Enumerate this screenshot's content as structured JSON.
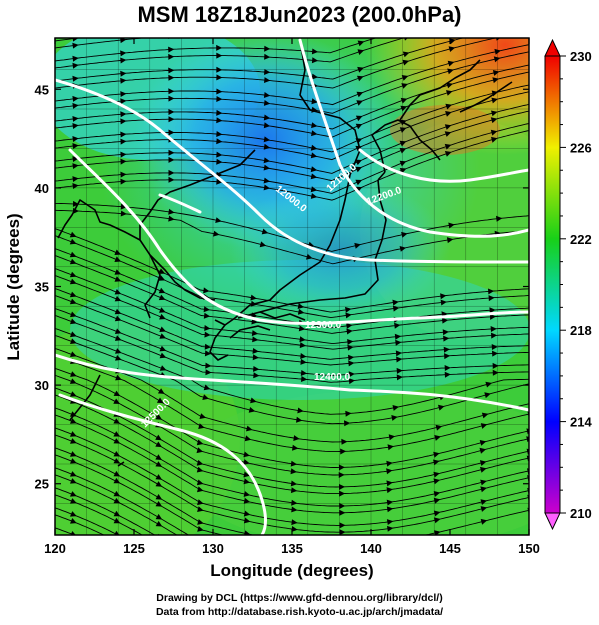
{
  "title": "MSM 18Z18Jun2023 (200.0hPa)",
  "axes": {
    "xlabel": "Longitude (degrees)",
    "ylabel": "Latitude  (degrees)",
    "xticks": [
      "120",
      "125",
      "130",
      "135",
      "140",
      "145",
      "150"
    ],
    "yticks": [
      "25",
      "30",
      "35",
      "40",
      "45"
    ],
    "xlim": [
      120,
      150
    ],
    "ylim": [
      22.4,
      47.6
    ]
  },
  "colorbar": {
    "tick_labels": [
      "230",
      "226",
      "222",
      "218",
      "214",
      "210"
    ],
    "range": [
      210,
      230
    ],
    "colors": [
      "#cc00cc",
      "#0000ff",
      "#00d8ff",
      "#18d018",
      "#f0f000",
      "#f00000"
    ]
  },
  "contours": [
    {
      "label": "12000.0",
      "value": 12000
    },
    {
      "label": "12100.0",
      "value": 12100
    },
    {
      "label": "12200.0",
      "value": 12200
    },
    {
      "label": "12300.0",
      "value": 12300
    },
    {
      "label": "12400.0",
      "value": 12400
    },
    {
      "label": "12500.0",
      "value": 12500
    }
  ],
  "credits": [
    "Drawing by DCL (https://www.gfd-dennou.org/library/dcl/)",
    "Data from http://database.rish.kyoto-u.ac.jp/arch/jmadata/"
  ]
}
